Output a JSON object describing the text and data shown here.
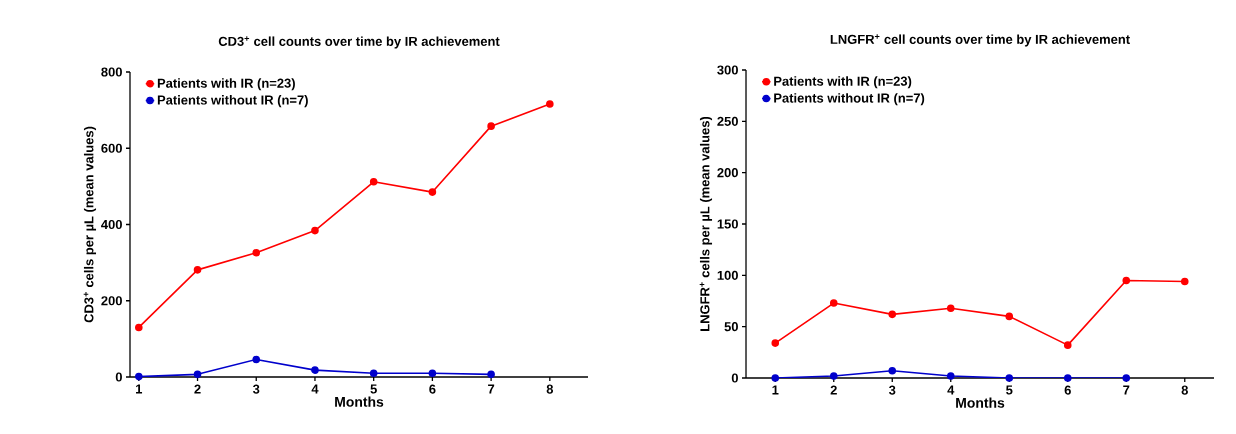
{
  "chart_data": [
    {
      "type": "line",
      "title": "CD3$^{+}$ cell counts over time by IR achievement",
      "xlabel": "Months",
      "ylabel": "CD3$^{+}$ cells per µL (mean values)",
      "x": [
        1,
        2,
        3,
        4,
        5,
        6,
        7,
        8
      ],
      "xlim": [
        0.85,
        8.65
      ],
      "xticks": [
        1,
        2,
        3,
        4,
        5,
        6,
        7,
        8
      ],
      "ylim": [
        0,
        800
      ],
      "yticks": [
        0,
        200,
        400,
        600,
        800
      ],
      "grid": false,
      "legend": "top left",
      "marker": "circle",
      "line_style": "solid",
      "series": [
        {
          "name": "Patients with IR (n=23)",
          "color": "#ff0000",
          "values": [
            130,
            281,
            326,
            384,
            512,
            485,
            658,
            716
          ]
        },
        {
          "name": "Patients without IR (n=7)",
          "color": "#0000cc",
          "values": [
            1,
            7,
            46,
            18,
            10,
            10,
            7,
            null
          ]
        }
      ]
    },
    {
      "type": "line",
      "title": "LNGFR$^{+}$ cell counts over time by IR achievement",
      "xlabel": "Months",
      "ylabel": "LNGFR$^{+}$ cells per µL (mean values)",
      "x": [
        1,
        2,
        3,
        4,
        5,
        6,
        7,
        8
      ],
      "xlim": [
        0.5,
        8.5
      ],
      "xticks": [
        1,
        2,
        3,
        4,
        5,
        6,
        7,
        8
      ],
      "ylim": [
        0,
        300
      ],
      "yticks": [
        0,
        50,
        100,
        150,
        200,
        250,
        300
      ],
      "grid": false,
      "legend": "top left",
      "marker": "circle",
      "line_style": "solid",
      "series": [
        {
          "name": "Patients with IR (n=23)",
          "color": "#ff0000",
          "values": [
            34,
            73,
            62,
            68,
            60,
            32,
            95,
            94
          ]
        },
        {
          "name": "Patients without IR (n=7)",
          "color": "#0000cc",
          "values": [
            0,
            2,
            7,
            2,
            0,
            0,
            0,
            null
          ]
        }
      ]
    }
  ]
}
